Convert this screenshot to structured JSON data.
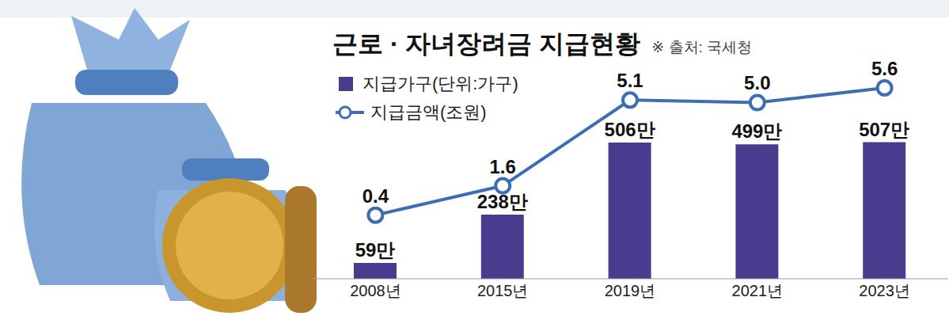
{
  "chart_data": {
    "type": "bar",
    "title": "근로 · 자녀장려금 지급현황",
    "source": "※ 출처: 국세청",
    "categories": [
      "2008년",
      "2015년",
      "2019년",
      "2021년",
      "2023년"
    ],
    "series": [
      {
        "name": "지급가구(단위:가구)",
        "type": "bar",
        "color": "#4a3b8f",
        "values": [
          590000,
          2380000,
          5060000,
          4990000,
          5070000
        ],
        "value_labels": [
          "59만",
          "238만",
          "506만",
          "499만",
          "507만"
        ]
      },
      {
        "name": "지급금액(조원)",
        "type": "line",
        "axis": "y2",
        "color": "#3d6db2",
        "marker": "circle",
        "values": [
          0.4,
          1.6,
          5.1,
          5.0,
          5.6
        ],
        "value_labels": [
          "0.4",
          "1.6",
          "5.1",
          "5.0",
          "5.6"
        ]
      }
    ],
    "ylim": [
      0,
      8000000
    ],
    "y2lim": [
      -2.2,
      6.6
    ],
    "data_labels": true,
    "legend": "top-left",
    "tick_labels": "x",
    "grid": false
  }
}
